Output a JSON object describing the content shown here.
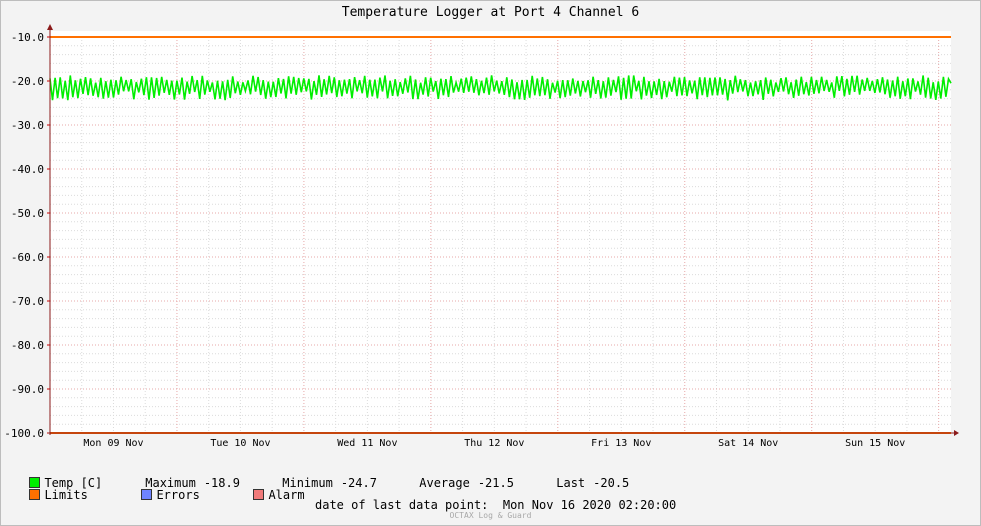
{
  "chart_data": {
    "type": "line",
    "title": "Temperature Logger at Port 4 Channel 6",
    "xlabel": "",
    "ylabel": "",
    "y_ticks": [
      "-10.0",
      "-20.0",
      "-30.0",
      "-40.0",
      "-50.0",
      "-60.0",
      "-70.0",
      "-80.0",
      "-90.0",
      "-100.0"
    ],
    "ylim": [
      -100,
      -10
    ],
    "x_ticks": [
      "Mon 09 Nov",
      "Tue 10 Nov",
      "Wed 11 Nov",
      "Thu 12 Nov",
      "Fri 13 Nov",
      "Sat 14 Nov",
      "Sun 15 Nov"
    ],
    "xlim": [
      "2020-11-09 00:00",
      "2020-11-16 02:20"
    ],
    "grid": true,
    "series": [
      {
        "name": "Temp [C]",
        "color": "#00ee00",
        "oscillation_range": [
          -24.7,
          -18.9
        ],
        "points_per_day": 50,
        "average": -21.5,
        "last": -20.5
      },
      {
        "name": "Limits",
        "color": "#ff7000",
        "values": [
          -10.0,
          -100.0
        ]
      }
    ]
  },
  "legend": {
    "temp": {
      "label": "Temp [C]",
      "color": "#00ee00"
    },
    "limits": {
      "label": "Limits",
      "color": "#ff7000"
    },
    "errors": {
      "label": "Errors",
      "color": "#6f84ff"
    },
    "alarm": {
      "label": "Alarm",
      "color": "#f07a7a"
    },
    "stats": {
      "maximum_label": "Maximum",
      "maximum": "-18.9",
      "minimum_label": "Minimum",
      "minimum": "-24.7",
      "average_label": "Average",
      "average": "-21.5",
      "last_label": "Last",
      "last": "-20.5"
    }
  },
  "footer": {
    "last_point_label": "date of last data point:",
    "last_point_value": "Mon Nov 16 2020 02:20:00",
    "credit": "OCTAX Log & Guard"
  }
}
